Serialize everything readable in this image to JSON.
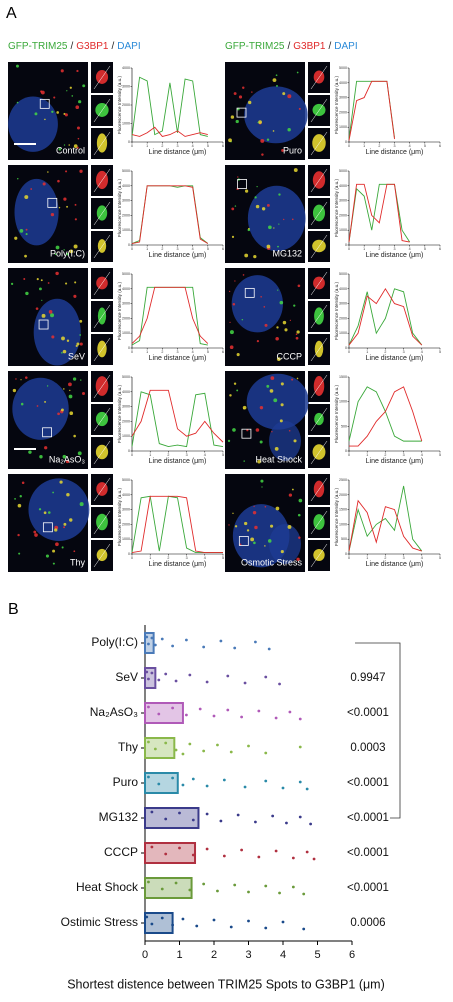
{
  "panel_a": {
    "label": "A",
    "channel_legend": [
      {
        "text": "GFP-TRIM25",
        "color": "#3aa83a"
      },
      {
        "text": "G3BP1",
        "color": "#e02a2a"
      },
      {
        "text": "DAPI",
        "color": "#2a8ad8"
      }
    ],
    "separator": "/",
    "images": [
      {
        "label": "Control"
      },
      {
        "label": "Poly(I:C)"
      },
      {
        "label": "SeV"
      },
      {
        "label": "Na₂AsO₃"
      },
      {
        "label": "Thy"
      },
      {
        "label": "Puro"
      },
      {
        "label": "MG132"
      },
      {
        "label": "CCCP"
      },
      {
        "label": "Heat Shock"
      },
      {
        "label": "Osmotic Stress"
      }
    ]
  },
  "panel_b": {
    "label": "B"
  },
  "chart_data": [
    {
      "type": "line",
      "ylabel": "Fluorescence Intensity (a.u.)",
      "xlabel": "Line distance (μm)",
      "xlim": [
        0,
        6
      ],
      "xticks": [
        0,
        1,
        2,
        3,
        4,
        5,
        6
      ],
      "ylim": [
        0,
        4000
      ],
      "yticks": [
        0,
        1000,
        2000,
        3000,
        4000
      ],
      "x": [
        0,
        0.5,
        1,
        1.5,
        2,
        2.5,
        3,
        3.5,
        4,
        4.5,
        5
      ],
      "series": [
        {
          "color": "#3aa83a",
          "values": [
            300,
            3500,
            3300,
            400,
            600,
            3200,
            500,
            3400,
            3300,
            400,
            300
          ]
        },
        {
          "color": "#e02a2a",
          "values": [
            400,
            300,
            500,
            800,
            300,
            400,
            600,
            300,
            400,
            500,
            400
          ]
        }
      ]
    },
    {
      "type": "line",
      "ylabel": "Fluorescence Intensity (a.u.)",
      "xlabel": "Line distance (μm)",
      "xlim": [
        0,
        6
      ],
      "xticks": [
        0,
        1,
        2,
        3,
        4,
        5,
        6
      ],
      "ylim": [
        0,
        5000
      ],
      "yticks": [
        0,
        1000,
        2000,
        3000,
        4000,
        5000
      ],
      "x": [
        0,
        0.5,
        1,
        1.5,
        2,
        2.5,
        3,
        3.5,
        4,
        4.5,
        5
      ],
      "series": [
        {
          "color": "#3aa83a",
          "values": [
            100,
            300,
            4000,
            4000,
            4000,
            4000,
            3900,
            4000,
            4000,
            500,
            100
          ]
        },
        {
          "color": "#e02a2a",
          "values": [
            100,
            200,
            4000,
            4000,
            4000,
            4000,
            4000,
            4000,
            3900,
            400,
            100
          ]
        }
      ]
    },
    {
      "type": "line",
      "ylabel": "Fluorescence Intensity (a.u.)",
      "xlabel": "Line distance (μm)",
      "xlim": [
        0,
        6
      ],
      "xticks": [
        0,
        1,
        2,
        3,
        4,
        5,
        6
      ],
      "ylim": [
        0,
        5000
      ],
      "yticks": [
        0,
        1000,
        2000,
        3000,
        4000,
        5000
      ],
      "x": [
        0,
        0.5,
        1,
        1.5,
        2,
        2.5,
        3,
        3.5,
        4,
        4.5,
        5
      ],
      "series": [
        {
          "color": "#3aa83a",
          "values": [
            200,
            500,
            4100,
            4100,
            4100,
            4100,
            4100,
            4100,
            4100,
            300,
            200
          ]
        },
        {
          "color": "#e02a2a",
          "values": [
            300,
            800,
            2000,
            4100,
            4100,
            4100,
            4100,
            4100,
            2000,
            800,
            300
          ]
        }
      ]
    },
    {
      "type": "line",
      "ylabel": "Fluorescence Intensity (a.u.)",
      "xlabel": "Line distance (μm)",
      "xlim": [
        0,
        5
      ],
      "xticks": [
        0,
        1,
        2,
        3,
        4,
        5
      ],
      "ylim": [
        0,
        5000
      ],
      "yticks": [
        0,
        1000,
        2000,
        3000,
        4000,
        5000
      ],
      "x": [
        0,
        0.5,
        1,
        1.5,
        2,
        2.5,
        3,
        3.5,
        4,
        4.5,
        5
      ],
      "series": [
        {
          "color": "#3aa83a",
          "values": [
            300,
            4000,
            3800,
            500,
            300,
            400,
            300,
            3800,
            3900,
            400,
            300
          ]
        },
        {
          "color": "#e02a2a",
          "values": [
            1000,
            2000,
            4100,
            4100,
            4100,
            1500,
            1000,
            1200,
            2000,
            1200,
            600
          ]
        }
      ]
    },
    {
      "type": "line",
      "ylabel": "Fluorescence Intensity (a.u.)",
      "xlabel": "Line distance (μm)",
      "xlim": [
        0,
        5
      ],
      "xticks": [
        0,
        1,
        2,
        3,
        4,
        5
      ],
      "ylim": [
        0,
        5000
      ],
      "yticks": [
        0,
        1000,
        2000,
        3000,
        4000,
        5000
      ],
      "x": [
        0,
        0.5,
        1,
        1.5,
        2,
        2.5,
        3,
        3.5,
        4,
        4.5,
        5
      ],
      "series": [
        {
          "color": "#3aa83a",
          "values": [
            100,
            3800,
            3900,
            200,
            3900,
            3800,
            400,
            100,
            100,
            100,
            100
          ]
        },
        {
          "color": "#e02a2a",
          "values": [
            100,
            200,
            3900,
            3900,
            3900,
            3900,
            3800,
            200,
            100,
            100,
            100
          ]
        }
      ]
    },
    {
      "type": "line",
      "ylabel": "Fluorescence Intensity (a.u.)",
      "xlabel": "Line distance (μm)",
      "xlim": [
        0,
        6
      ],
      "xticks": [
        0,
        1,
        2,
        3,
        4,
        5,
        6
      ],
      "ylim": [
        0,
        5000
      ],
      "yticks": [
        0,
        1000,
        2000,
        3000,
        4000,
        5000
      ],
      "x": [
        0,
        0.5,
        1,
        1.5,
        2,
        2.5,
        3
      ],
      "series": [
        {
          "color": "#3aa83a",
          "values": [
            200,
            4100,
            4100,
            4100,
            4100,
            4100,
            300
          ]
        },
        {
          "color": "#e02a2a",
          "values": [
            100,
            2800,
            3000,
            4100,
            4100,
            4100,
            200
          ]
        }
      ]
    },
    {
      "type": "line",
      "ylabel": "Fluorescence Intensity (a.u.)",
      "xlabel": "Line distance (μm)",
      "xlim": [
        0,
        6
      ],
      "xticks": [
        0,
        1,
        2,
        3,
        4,
        5,
        6
      ],
      "ylim": [
        0,
        5000
      ],
      "yticks": [
        0,
        1000,
        2000,
        3000,
        4000,
        5000
      ],
      "x": [
        0,
        0.5,
        1,
        1.5,
        2,
        2.5,
        3,
        3.5,
        4
      ],
      "series": [
        {
          "color": "#3aa83a",
          "values": [
            200,
            3800,
            3300,
            1000,
            4100,
            4100,
            4100,
            1000,
            200
          ]
        },
        {
          "color": "#e02a2a",
          "values": [
            200,
            4100,
            4100,
            2000,
            1500,
            4100,
            4100,
            300,
            200
          ]
        }
      ]
    },
    {
      "type": "line",
      "ylabel": "Fluorescence Intensity (a.u.)",
      "xlabel": "Line distance (μm)",
      "xlim": [
        0,
        5
      ],
      "xticks": [
        0,
        1,
        2,
        3,
        4,
        5
      ],
      "ylim": [
        0,
        5000
      ],
      "yticks": [
        0,
        1000,
        2000,
        3000,
        4000,
        5000
      ],
      "x": [
        0,
        0.5,
        1,
        1.5,
        2,
        2.5,
        3,
        3.5,
        4
      ],
      "series": [
        {
          "color": "#3aa83a",
          "values": [
            200,
            1500,
            3800,
            1000,
            2000,
            4000,
            3800,
            1000,
            200
          ]
        },
        {
          "color": "#e02a2a",
          "values": [
            200,
            1000,
            3500,
            3000,
            4000,
            3000,
            2800,
            800,
            200
          ]
        }
      ]
    },
    {
      "type": "line",
      "ylabel": "Fluorescence Intensity (a.u.)",
      "xlabel": "Line distance (μm)",
      "xlim": [
        0,
        5
      ],
      "xticks": [
        0,
        1,
        2,
        3,
        4,
        5
      ],
      "ylim": [
        0,
        1500
      ],
      "yticks": [
        0,
        500,
        1000,
        1500
      ],
      "x": [
        0,
        0.5,
        1,
        1.5,
        2,
        2.5,
        3,
        3.5,
        4
      ],
      "series": [
        {
          "color": "#3aa83a",
          "values": [
            200,
            1000,
            1300,
            1200,
            800,
            300,
            200,
            200,
            200
          ]
        },
        {
          "color": "#e02a2a",
          "values": [
            100,
            100,
            300,
            600,
            800,
            1200,
            1300,
            800,
            200
          ]
        }
      ]
    },
    {
      "type": "line",
      "ylabel": "Fluorescence Intensity (a.u.)",
      "xlabel": "Line distance (μm)",
      "xlim": [
        0,
        5
      ],
      "xticks": [
        0,
        1,
        2,
        3,
        4,
        5
      ],
      "ylim": [
        0,
        2500
      ],
      "yticks": [
        0,
        500,
        1000,
        1500,
        2000,
        2500
      ],
      "x": [
        0,
        0.5,
        1,
        1.5,
        2,
        2.5,
        3,
        3.5,
        4
      ],
      "series": [
        {
          "color": "#3aa83a",
          "values": [
            100,
            1500,
            600,
            1000,
            1200,
            800,
            2300,
            500,
            100
          ]
        },
        {
          "color": "#e02a2a",
          "values": [
            100,
            1800,
            1400,
            400,
            1600,
            1500,
            600,
            200,
            100
          ]
        }
      ]
    },
    {
      "type": "bar",
      "orientation": "horizontal",
      "xlabel": "Shortest distence between TRIM25 Spots to G3BP1 (μm)",
      "xlim": [
        0,
        6
      ],
      "xticks": [
        0,
        1,
        2,
        3,
        4,
        5,
        6
      ],
      "categories": [
        "Poly(I:C)",
        "SeV",
        "Na₂AsO₃",
        "Thy",
        "Puro",
        "MG132",
        "CCCP",
        "Heat Shock",
        "Ostimic Stress"
      ],
      "colors": [
        "#4a7ab8",
        "#6a4fa0",
        "#b05ab8",
        "#8ab84a",
        "#2a8aa8",
        "#3a3a8a",
        "#b03040",
        "#6a9a3a",
        "#1a4a8a"
      ],
      "values": [
        0.25,
        0.3,
        1.1,
        0.85,
        0.95,
        1.55,
        1.45,
        1.35,
        0.8
      ],
      "points": [
        [
          0.05,
          0.1,
          0.2,
          0.3,
          0.5,
          0.8,
          1.2,
          1.7,
          2.2,
          2.6,
          3.2,
          3.6
        ],
        [
          0.05,
          0.1,
          0.2,
          0.4,
          0.6,
          0.9,
          1.3,
          1.8,
          2.4,
          2.9,
          3.5,
          3.9
        ],
        [
          0.1,
          0.4,
          0.8,
          1.2,
          1.6,
          2.0,
          2.4,
          2.8,
          3.3,
          3.8,
          4.2,
          4.5
        ],
        [
          0.1,
          0.3,
          0.6,
          0.9,
          1.3,
          1.7,
          2.1,
          2.5,
          3.0,
          3.5,
          4.5,
          1.1
        ],
        [
          0.1,
          0.4,
          0.8,
          1.1,
          1.4,
          1.8,
          2.3,
          2.9,
          3.5,
          4.0,
          4.5,
          4.7
        ],
        [
          0.2,
          0.6,
          1.0,
          1.4,
          1.8,
          2.2,
          2.7,
          3.2,
          3.7,
          4.1,
          4.5,
          4.8
        ],
        [
          0.2,
          0.6,
          1.0,
          1.4,
          1.8,
          2.3,
          2.8,
          3.3,
          3.8,
          4.3,
          4.7,
          4.9
        ],
        [
          0.1,
          0.5,
          0.9,
          1.3,
          1.7,
          2.1,
          2.6,
          3.0,
          3.5,
          3.9,
          4.3,
          4.6
        ],
        [
          0.05,
          0.2,
          0.5,
          0.8,
          1.1,
          1.5,
          2.0,
          2.5,
          3.0,
          3.5,
          4.0,
          4.6
        ]
      ],
      "p_values": [
        null,
        "0.9947",
        "<0.0001",
        "0.0003",
        "<0.0001",
        "<0.0001",
        "<0.0001",
        "<0.0001",
        "0.0006"
      ]
    }
  ]
}
